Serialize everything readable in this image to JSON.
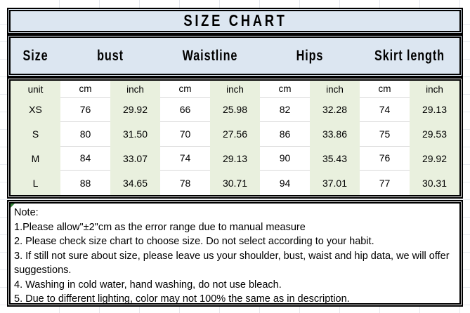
{
  "title": "SIZE CHART",
  "header": {
    "labels": [
      "Size",
      "bust",
      "Waistline",
      "Hips",
      "Skirt length"
    ]
  },
  "size_table": {
    "rows": [
      [
        "unit",
        "cm",
        "inch",
        "cm",
        "inch",
        "cm",
        "inch",
        "cm",
        "inch"
      ],
      [
        "XS",
        "76",
        "29.92",
        "66",
        "25.98",
        "82",
        "32.28",
        "74",
        "29.13"
      ],
      [
        "S",
        "80",
        "31.50",
        "70",
        "27.56",
        "86",
        "33.86",
        "75",
        "29.53"
      ],
      [
        "M",
        "84",
        "33.07",
        "74",
        "29.13",
        "90",
        "35.43",
        "76",
        "29.92"
      ],
      [
        "L",
        "88",
        "34.65",
        "78",
        "30.71",
        "94",
        "37.01",
        "77",
        "30.31"
      ]
    ]
  },
  "note": {
    "lines": [
      "Note:",
      "1.Please allow\"±2\"cm as the error range due to manual measure",
      "2. Please check size chart to choose size. Do not select according to your habit.",
      "3. If still not sure about size, please leave us your shoulder, bust, waist and hip data, we will offer suggestions.",
      "4. Washing in cold water, hand washing, do not use bleach.",
      "5. Due to different lighting, color may not 100% the same as in description."
    ]
  },
  "colors": {
    "header_bg": "#dce6f1",
    "stripe_bg": "#e9f0de",
    "border": "#000000",
    "gridline": "#e4e7ed",
    "row_separator": "#d9d9d9",
    "error_indicator": "#2e7d32"
  }
}
